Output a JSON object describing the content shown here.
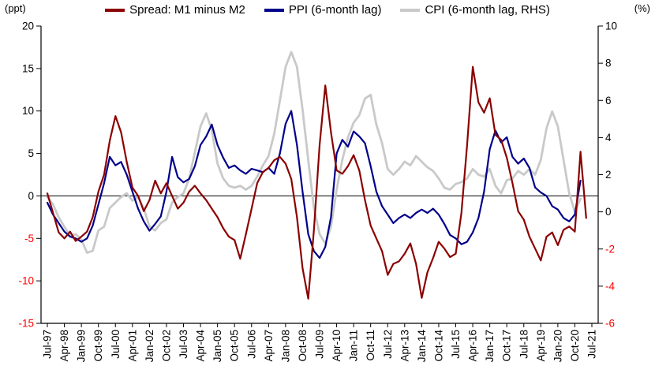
{
  "axes": {
    "left_unit": "(ppt)",
    "right_unit": "(%)",
    "left_ticks": [
      20,
      15,
      10,
      5,
      0,
      -5,
      -10,
      -15
    ],
    "right_ticks": [
      10,
      8,
      6,
      4,
      2,
      0,
      -2,
      -4,
      -6
    ],
    "negative_tick_color": "#FF0000",
    "axis_color": "#000000"
  },
  "legend": [
    {
      "label": "Spread: M1 minus M2",
      "color": "#8B0000"
    },
    {
      "label": "PPI (6-month lag)",
      "color": "#00008B"
    },
    {
      "label": "CPI (6-month lag, RHS)",
      "color": "#C9C9C9"
    }
  ],
  "chart_data": {
    "type": "line",
    "title": "",
    "left_range": [
      -15,
      20
    ],
    "right_range": [
      -6,
      10
    ],
    "x_months_span": 288,
    "x_tick_labels": [
      "Jul-97",
      "Apr-98",
      "Jan-99",
      "Oct-99",
      "Jul-00",
      "Apr-01",
      "Jan-02",
      "Oct-02",
      "Jul-03",
      "Apr-04",
      "Jan-05",
      "Oct-05",
      "Jul-06",
      "Apr-07",
      "Jan-08",
      "Oct-08",
      "Jul-09",
      "Apr-10",
      "Jan-11",
      "Oct-11",
      "Jul-12",
      "Apr-13",
      "Jan-14",
      "Oct-14",
      "Jul-15",
      "Apr-16",
      "Jan-17",
      "Oct-17",
      "Jul-18",
      "Apr-19",
      "Jan-20",
      "Oct-20",
      "Jul-21"
    ],
    "x_tick_step_months": 9,
    "legend_position": "top",
    "grid": false,
    "series": [
      {
        "name": "Spread: M1 minus M2",
        "axis": "left",
        "color": "#8B0000",
        "width": 2.2,
        "step_months": 3,
        "values": [
          0.3,
          -2.0,
          -4.3,
          -5.0,
          -4.2,
          -5.3,
          -4.8,
          -4.2,
          -2.5,
          0.5,
          2.5,
          6.5,
          9.4,
          7.5,
          4.0,
          1.0,
          0.0,
          -1.8,
          -0.5,
          1.8,
          0.3,
          1.5,
          0.0,
          -1.5,
          -0.8,
          0.5,
          1.2,
          0.3,
          -0.5,
          -1.5,
          -2.5,
          -3.8,
          -4.8,
          -5.2,
          -7.4,
          -4.5,
          -1.5,
          1.5,
          2.8,
          3.3,
          4.2,
          4.6,
          3.8,
          2.0,
          -2.5,
          -8.5,
          -12.1,
          -4.0,
          6.0,
          13.0,
          7.5,
          3.0,
          2.6,
          3.5,
          4.8,
          3.0,
          -0.5,
          -3.5,
          -5.0,
          -6.5,
          -9.3,
          -8.0,
          -7.7,
          -6.8,
          -5.6,
          -8.0,
          -12.0,
          -9.0,
          -7.3,
          -5.4,
          -6.2,
          -7.2,
          -6.8,
          -2.0,
          6.0,
          15.2,
          11.0,
          9.8,
          11.5,
          7.2,
          6.6,
          4.5,
          1.5,
          -1.8,
          -2.8,
          -4.8,
          -6.2,
          -7.6,
          -4.8,
          -4.3,
          -5.8,
          -4.0,
          -3.6,
          -4.2,
          5.2,
          -2.6
        ]
      },
      {
        "name": "PPI (6-month lag)",
        "axis": "left",
        "color": "#00008B",
        "width": 2.2,
        "step_months": 3,
        "values": [
          -0.8,
          -2.2,
          -3.2,
          -4.2,
          -4.8,
          -5.0,
          -5.4,
          -5.0,
          -3.5,
          -1.0,
          1.5,
          4.6,
          3.6,
          4.0,
          2.5,
          0.5,
          -1.5,
          -3.0,
          -4.1,
          -3.3,
          -2.4,
          0.5,
          4.6,
          2.2,
          1.6,
          2.0,
          3.5,
          6.0,
          7.0,
          8.4,
          6.0,
          4.5,
          3.3,
          3.6,
          3.0,
          2.6,
          3.2,
          3.0,
          2.8,
          3.3,
          2.6,
          5.0,
          8.5,
          10.0,
          6.0,
          0.5,
          -4.5,
          -6.5,
          -7.3,
          -6.0,
          -2.5,
          5.0,
          6.6,
          5.8,
          7.6,
          7.0,
          6.2,
          3.5,
          0.5,
          -1.2,
          -2.2,
          -3.2,
          -2.6,
          -2.2,
          -2.6,
          -2.0,
          -1.6,
          -2.0,
          -1.5,
          -2.2,
          -3.3,
          -4.6,
          -5.0,
          -5.7,
          -5.4,
          -4.3,
          -2.6,
          0.5,
          5.5,
          7.7,
          6.3,
          6.9,
          4.6,
          3.8,
          4.4,
          3.3,
          1.0,
          0.4,
          0.0,
          -1.2,
          -1.6,
          -2.6,
          -3.0,
          -2.2,
          1.8
        ]
      },
      {
        "name": "CPI (6-month lag, RHS)",
        "axis": "right",
        "color": "#C9C9C9",
        "width": 2.8,
        "step_months": 3,
        "values": [
          0.8,
          0.4,
          -0.3,
          -0.8,
          -1.3,
          -1.2,
          -1.5,
          -2.2,
          -2.1,
          -1.0,
          -0.8,
          0.2,
          0.5,
          0.8,
          1.0,
          0.6,
          0.8,
          0.2,
          -0.8,
          -1.0,
          -0.6,
          -0.4,
          0.5,
          0.8,
          1.0,
          1.8,
          3.2,
          4.6,
          5.3,
          4.4,
          2.6,
          1.8,
          1.4,
          1.3,
          1.4,
          1.2,
          1.4,
          1.9,
          2.5,
          3.0,
          4.2,
          6.0,
          7.8,
          8.6,
          7.8,
          5.5,
          2.8,
          0.2,
          -1.2,
          -1.7,
          -0.8,
          1.2,
          2.8,
          4.0,
          4.8,
          5.2,
          6.1,
          6.3,
          4.7,
          3.7,
          2.3,
          2.0,
          2.3,
          2.7,
          2.5,
          3.0,
          2.7,
          2.4,
          2.2,
          1.8,
          1.3,
          1.2,
          1.5,
          1.6,
          1.8,
          2.3,
          2.0,
          1.9,
          2.3,
          1.4,
          1.0,
          1.7,
          1.8,
          2.2,
          2.0,
          2.3,
          2.0,
          2.8,
          4.5,
          5.4,
          4.6,
          2.8,
          1.0,
          0.0,
          0.7
        ]
      }
    ]
  }
}
